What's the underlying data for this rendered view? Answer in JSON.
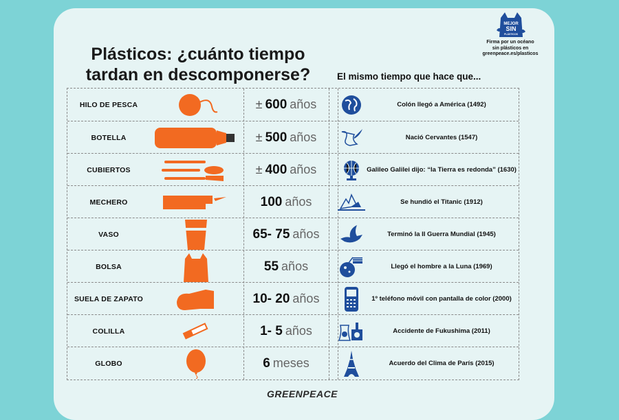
{
  "title_line1": "Plásticos: ¿cuánto tiempo",
  "title_line2": "tardan en descomponerse?",
  "subtitle": "El mismo tiempo que hace que...",
  "badge": {
    "logo_line1": "MEJOR",
    "logo_line2": "SIN",
    "logo_line3": "PLÁSTICOS",
    "line1": "Firma por un océano",
    "line2": "sin plásticos en",
    "line3": "greenpeace.es/plasticos"
  },
  "rows": [
    {
      "name": "HILO DE PESCA",
      "prefix": "±",
      "number": "600",
      "unit": "años",
      "icon": "globe-icon",
      "event": "Colón llegó a América (1492)"
    },
    {
      "name": "BOTELLA",
      "prefix": "±",
      "number": "500",
      "unit": "años",
      "icon": "quill-icon",
      "event": "Nació Cervantes (1547)"
    },
    {
      "name": "CUBIERTOS",
      "prefix": "±",
      "number": "400",
      "unit": "años",
      "icon": "terrestrial-globe-icon",
      "event": "Galileo Galilei dijo: “la Tierra es redonda” (1630)"
    },
    {
      "name": "MECHERO",
      "prefix": "",
      "number": "100",
      "unit": "años",
      "icon": "titanic-iceberg-icon",
      "event": "Se hundió el Titanic (1912)"
    },
    {
      "name": "VASO",
      "prefix": "",
      "number": "65- 75",
      "unit": "años",
      "icon": "peace-dove-icon",
      "event": "Terminó la II Guerra Mundial (1945)"
    },
    {
      "name": "BOLSA",
      "prefix": "",
      "number": "55",
      "unit": "años",
      "icon": "moon-flag-icon",
      "event": "Llegó el hombre a la Luna (1969)"
    },
    {
      "name": "SUELA DE ZAPATO",
      "prefix": "",
      "number": "10- 20",
      "unit": "años",
      "icon": "mobile-phone-icon",
      "event": "1º teléfono móvil con pantalla de color (2000)"
    },
    {
      "name": "COLILLA",
      "prefix": "",
      "number": "1- 5",
      "unit": "años",
      "icon": "nuclear-plant-icon",
      "event": "Accidente de Fukushima (2011)"
    },
    {
      "name": "GLOBO",
      "prefix": "",
      "number": "6",
      "unit": "meses",
      "icon": "eiffel-tower-icon",
      "event": "Acuerdo del Clima de París (2015)"
    }
  ],
  "footer": "GREENPEACE",
  "colors": {
    "accent": "#f26a21",
    "icon_blue": "#1f4e9c",
    "background": "#7dd3d6",
    "card": "#e6f4f4"
  }
}
